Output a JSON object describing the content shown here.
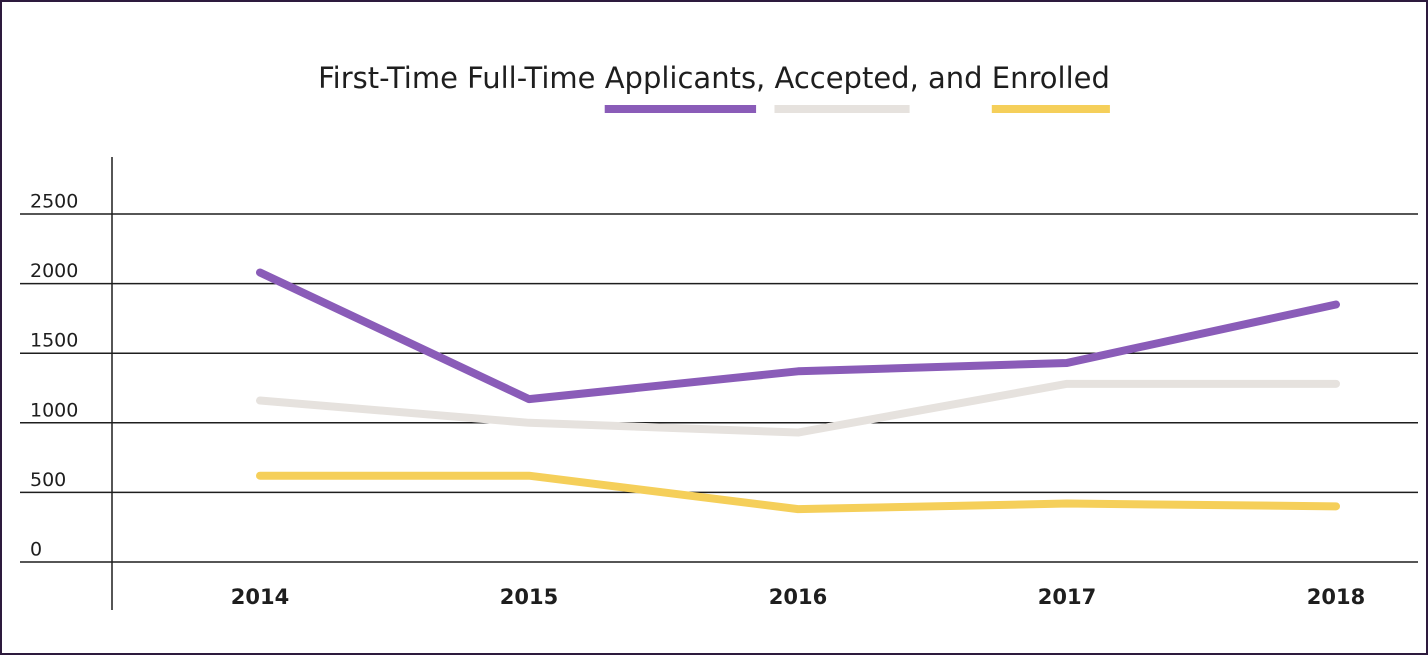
{
  "chart_data": {
    "type": "line",
    "title": "First-Time Full-Time Applicants, Accepted, and Enrolled",
    "categories": [
      "2014",
      "2015",
      "2016",
      "2017",
      "2018"
    ],
    "series": [
      {
        "name": "Applicants",
        "color": "#8a5cb8",
        "values": [
          2080,
          1170,
          1370,
          1430,
          1850
        ]
      },
      {
        "name": "Accepted",
        "color": "#e6e2de",
        "values": [
          1160,
          1000,
          930,
          1280,
          1280
        ]
      },
      {
        "name": "Enrolled",
        "color": "#f5cf5a",
        "values": [
          620,
          620,
          380,
          420,
          400
        ]
      }
    ],
    "ylim": [
      0,
      2500
    ],
    "yticks": [
      0,
      500,
      1000,
      1500,
      2000,
      2500
    ],
    "grid": true
  }
}
